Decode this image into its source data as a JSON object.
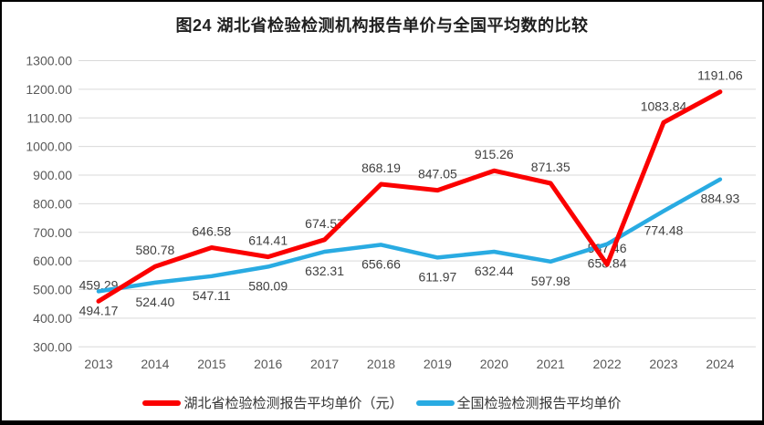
{
  "chart_data": {
    "type": "line",
    "title": "图24 湖北省检验检测机构报告单价与全国平均数的比较",
    "categories": [
      "2013",
      "2014",
      "2015",
      "2016",
      "2017",
      "2018",
      "2019",
      "2020",
      "2021",
      "2022",
      "2023",
      "2024"
    ],
    "series": [
      {
        "name": "湖北省检验检测报告平均单价（元）",
        "color": "#FB0000",
        "stroke_width": 5,
        "label_position": "above",
        "values": [
          459.29,
          580.78,
          646.58,
          614.41,
          674.57,
          868.19,
          847.05,
          915.26,
          871.35,
          587.46,
          1083.84,
          1191.06
        ]
      },
      {
        "name": "全国检验检测报告平均单价",
        "color": "#29ABE2",
        "stroke_width": 4.5,
        "label_position": "below",
        "values": [
          494.17,
          524.4,
          547.11,
          580.09,
          632.31,
          656.66,
          611.97,
          632.44,
          597.98,
          658.84,
          774.48,
          884.93
        ]
      }
    ],
    "ylim": [
      300,
      1300
    ],
    "ytick_step": 100,
    "y_ticks": [
      "1300.00",
      "1200.00",
      "1100.00",
      "1000.00",
      "900.00",
      "800.00",
      "700.00",
      "600.00",
      "500.00",
      "400.00",
      "300.00"
    ],
    "grid": "horizontal",
    "legend_position": "bottom",
    "value_format": "0.00"
  },
  "colors": {
    "background": "#FFFFFF",
    "frame_border": "#000000",
    "gridline": "#D9D9D9",
    "tick_text": "#595959",
    "data_label_text": "#3F3F3F",
    "title_text": "#1F1F1F",
    "legend_text": "#333333"
  }
}
